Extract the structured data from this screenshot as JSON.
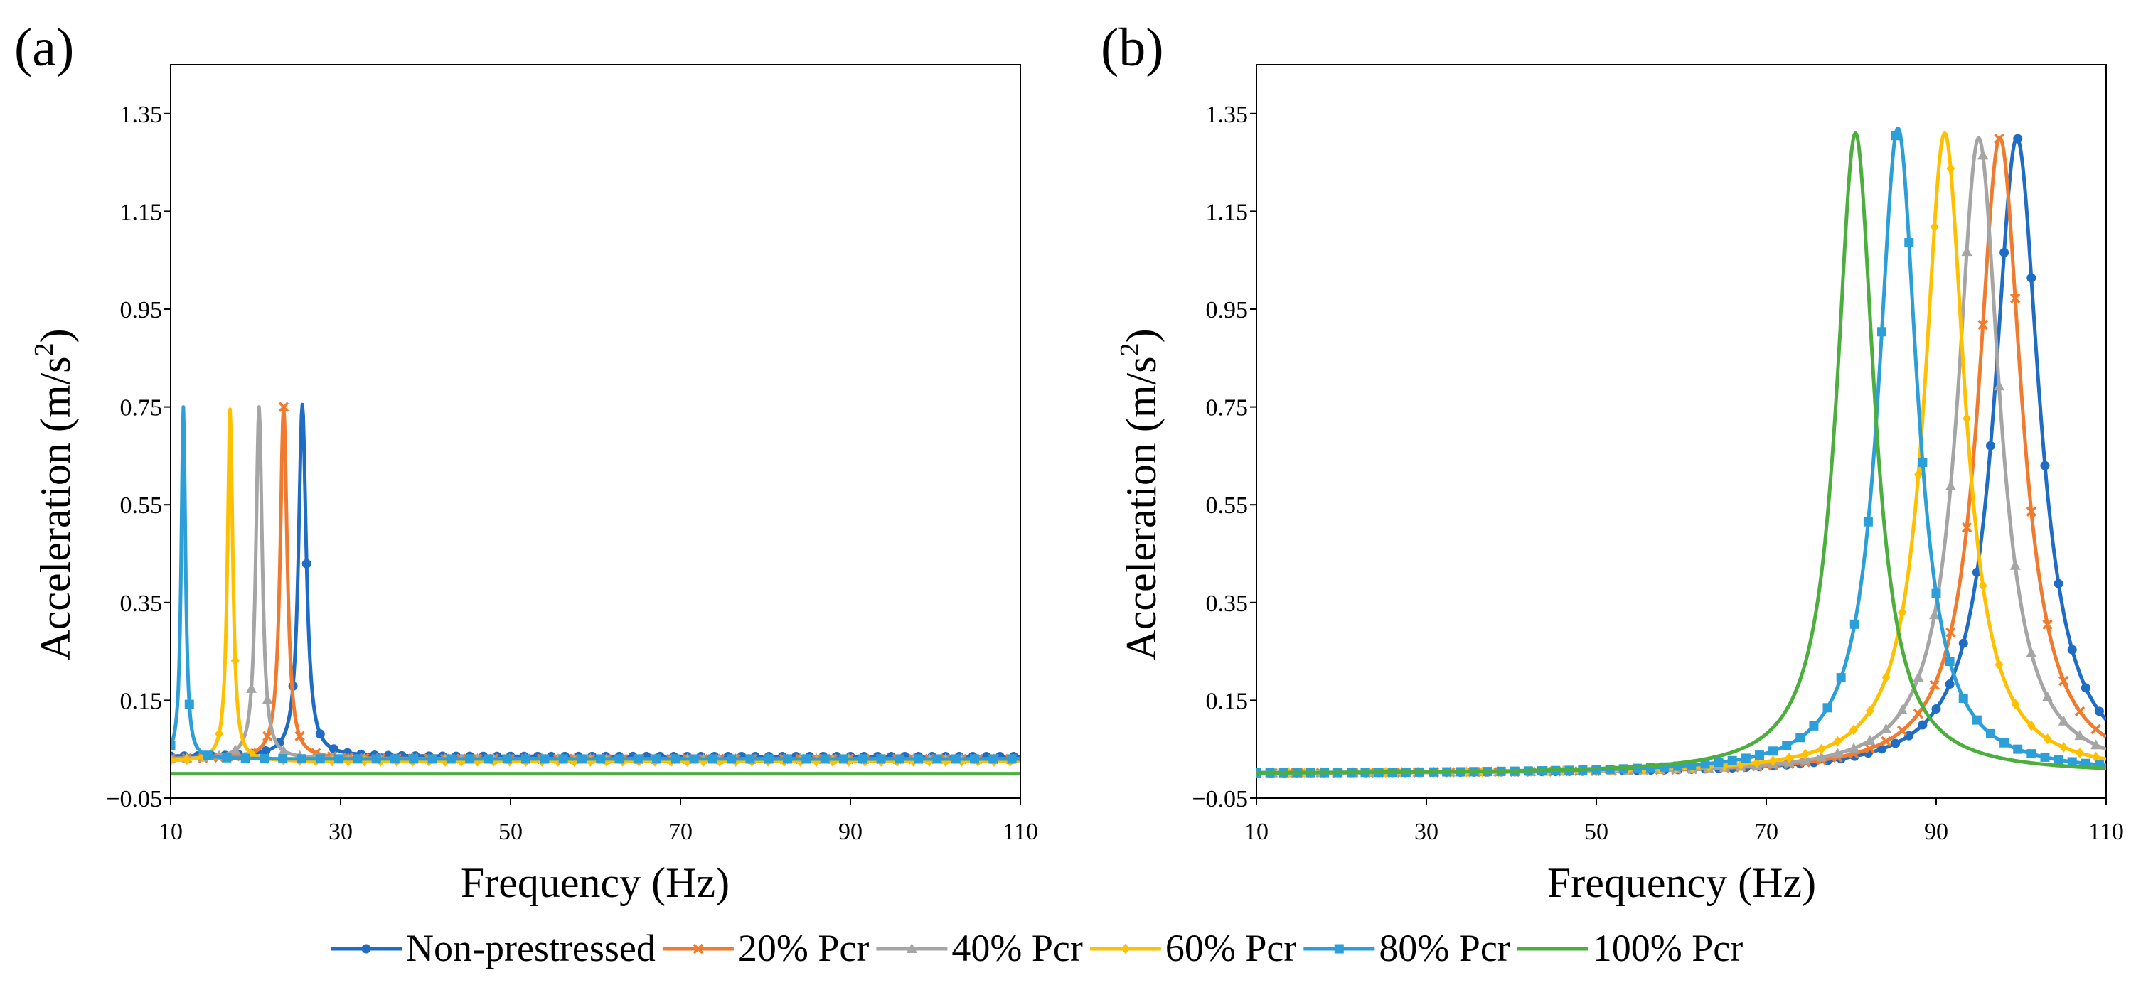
{
  "figure": {
    "legend": [
      {
        "label": "Non-prestressed",
        "color": "#1f6cc4",
        "marker": "circle"
      },
      {
        "label": "20% Pcr",
        "color": "#f07b2e",
        "marker": "cross"
      },
      {
        "label": "40% Pcr",
        "color": "#a5a5a5",
        "marker": "triangle"
      },
      {
        "label": "60% Pcr",
        "color": "#ffc000",
        "marker": "diamond"
      },
      {
        "label": "80% Pcr",
        "color": "#2c9fd9",
        "marker": "square"
      },
      {
        "label": "100% Pcr",
        "color": "#4caf3d",
        "marker": "none"
      }
    ]
  },
  "chart_data": [
    {
      "type": "line",
      "panel_label": "(a)",
      "xlabel": "Frequency (Hz)",
      "ylabel_text": "Acceleration (m/s",
      "ylabel_sup": "2",
      "ylabel_close": ")",
      "xlim": [
        10,
        110
      ],
      "ylim": [
        -0.05,
        1.45
      ],
      "xticks": [
        10,
        30,
        50,
        70,
        90,
        110
      ],
      "xtick_labels": [
        "10",
        "30",
        "50",
        "70",
        "90",
        "110"
      ],
      "yticks": [
        -0.05,
        0.15,
        0.35,
        0.55,
        0.75,
        0.95,
        1.15,
        1.35
      ],
      "ytick_labels": [
        "−0.05",
        "0.15",
        "0.35",
        "0.55",
        "0.75",
        "0.95",
        "1.15",
        "1.35"
      ],
      "series": [
        {
          "name": "Non-prestressed",
          "peak_frequency": 25.5,
          "peak_value": 0.72,
          "half_width": 0.55,
          "baseline": 0.035,
          "marker_step": 1.6
        },
        {
          "name": "20% Pcr",
          "peak_frequency": 23.3,
          "peak_value": 0.72,
          "half_width": 0.5,
          "baseline": 0.03,
          "marker_step": 1.9
        },
        {
          "name": "40% Pcr",
          "peak_frequency": 20.4,
          "peak_value": 0.72,
          "half_width": 0.45,
          "baseline": 0.03,
          "marker_step": 1.9
        },
        {
          "name": "60% Pcr",
          "peak_frequency": 17.0,
          "peak_value": 0.72,
          "half_width": 0.38,
          "baseline": 0.025,
          "marker_step": 1.9
        },
        {
          "name": "80% Pcr",
          "peak_frequency": 11.5,
          "peak_value": 0.72,
          "half_width": 0.3,
          "baseline": 0.03,
          "marker_step": 2.2
        },
        {
          "name": "100% Pcr",
          "peak_frequency": null,
          "peak_value": 0.0,
          "half_width": 1.0,
          "baseline": 0.0,
          "marker_step": 0
        }
      ]
    },
    {
      "type": "line",
      "panel_label": "(b)",
      "xlabel": "Frequency (Hz)",
      "ylabel_text": "Acceleration (m/s",
      "ylabel_sup": "2",
      "ylabel_close": ")",
      "xlim": [
        10,
        110
      ],
      "ylim": [
        -0.05,
        1.45
      ],
      "xticks": [
        10,
        30,
        50,
        70,
        90,
        110
      ],
      "xtick_labels": [
        "10",
        "30",
        "50",
        "70",
        "90",
        "110"
      ],
      "yticks": [
        -0.05,
        0.15,
        0.35,
        0.55,
        0.75,
        0.95,
        1.15,
        1.35
      ],
      "ytick_labels": [
        "−0.05",
        "0.15",
        "0.35",
        "0.55",
        "0.75",
        "0.95",
        "1.15",
        "1.35"
      ],
      "series": [
        {
          "name": "Non-prestressed",
          "peak_frequency": 99.5,
          "peak_value": 1.3,
          "half_width": 3.2,
          "baseline": 0.0,
          "marker_step": 1.6
        },
        {
          "name": "20% Pcr",
          "peak_frequency": 97.5,
          "peak_value": 1.3,
          "half_width": 3.1,
          "baseline": 0.0,
          "marker_step": 1.9
        },
        {
          "name": "40% Pcr",
          "peak_frequency": 95.0,
          "peak_value": 1.3,
          "half_width": 3.0,
          "baseline": 0.0,
          "marker_step": 1.9
        },
        {
          "name": "60% Pcr",
          "peak_frequency": 91.0,
          "peak_value": 1.31,
          "half_width": 2.9,
          "baseline": 0.0,
          "marker_step": 1.9
        },
        {
          "name": "80% Pcr",
          "peak_frequency": 85.5,
          "peak_value": 1.32,
          "half_width": 2.8,
          "baseline": 0.0,
          "marker_step": 1.6
        },
        {
          "name": "100% Pcr",
          "peak_frequency": 80.5,
          "peak_value": 1.31,
          "half_width": 2.7,
          "baseline": 0.0,
          "marker_step": 0
        }
      ]
    }
  ]
}
